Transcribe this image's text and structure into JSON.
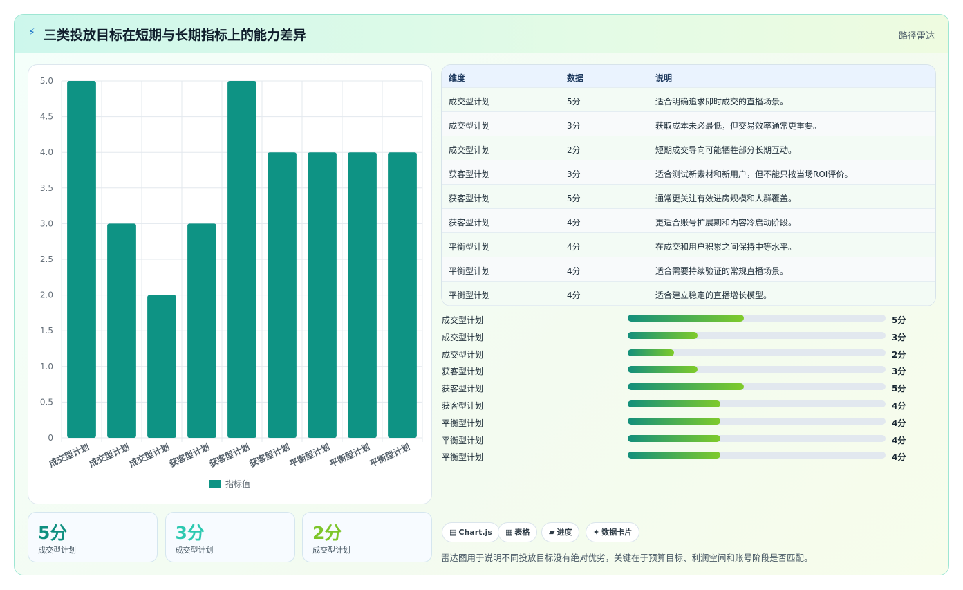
{
  "header": {
    "icon": "lightning-icon",
    "title": "三类投放目标在短期与长期指标上的能力差异",
    "tag": "路径雷达"
  },
  "chart_data": {
    "type": "bar",
    "categories": [
      "成交型计划",
      "成交型计划",
      "成交型计划",
      "获客型计划",
      "获客型计划",
      "获客型计划",
      "平衡型计划",
      "平衡型计划",
      "平衡型计划"
    ],
    "series": [
      {
        "name": "指标值",
        "values": [
          5,
          3,
          2,
          3,
          5,
          4,
          4,
          4,
          4
        ]
      }
    ],
    "ylim": [
      0,
      5
    ],
    "yticks": [
      "0",
      "0.5",
      "1.0",
      "1.5",
      "2.0",
      "2.5",
      "3.0",
      "3.5",
      "4.0",
      "4.5",
      "5.0"
    ],
    "grid": true,
    "legend": "bottom",
    "bar_color": "#0e9384"
  },
  "tiles": [
    {
      "value": "5分",
      "label": "成交型计划",
      "color": "#0e8f7f"
    },
    {
      "value": "3分",
      "label": "成交型计划",
      "color": "#2cc9b0"
    },
    {
      "value": "2分",
      "label": "成交型计划",
      "color": "#7dc52a"
    }
  ],
  "table": {
    "headers": [
      "维度",
      "数据",
      "说明"
    ],
    "rows": [
      [
        "成交型计划",
        "5分",
        "适合明确追求即时成交的直播场景。"
      ],
      [
        "成交型计划",
        "3分",
        "获取成本未必最低，但交易效率通常更重要。"
      ],
      [
        "成交型计划",
        "2分",
        "短期成交导向可能牺牲部分长期互动。"
      ],
      [
        "获客型计划",
        "3分",
        "适合测试新素材和新用户，但不能只按当场ROI评价。"
      ],
      [
        "获客型计划",
        "5分",
        "通常更关注有效进房规模和人群覆盖。"
      ],
      [
        "获客型计划",
        "4分",
        "更适合账号扩展期和内容冷启动阶段。"
      ],
      [
        "平衡型计划",
        "4分",
        "在成交和用户积累之间保持中等水平。"
      ],
      [
        "平衡型计划",
        "4分",
        "适合需要持续验证的常规直播场景。"
      ],
      [
        "平衡型计划",
        "4分",
        "适合建立稳定的直播增长模型。"
      ]
    ]
  },
  "progress": [
    {
      "label": "成交型计划",
      "value": "5分",
      "fraction": 0.45
    },
    {
      "label": "成交型计划",
      "value": "3分",
      "fraction": 0.27
    },
    {
      "label": "成交型计划",
      "value": "2分",
      "fraction": 0.18
    },
    {
      "label": "获客型计划",
      "value": "3分",
      "fraction": 0.27
    },
    {
      "label": "获客型计划",
      "value": "5分",
      "fraction": 0.45
    },
    {
      "label": "获客型计划",
      "value": "4分",
      "fraction": 0.36
    },
    {
      "label": "平衡型计划",
      "value": "4分",
      "fraction": 0.36
    },
    {
      "label": "平衡型计划",
      "value": "4分",
      "fraction": 0.36
    },
    {
      "label": "平衡型计划",
      "value": "4分",
      "fraction": 0.36
    }
  ],
  "chips": [
    {
      "icon": "chart-icon",
      "glyph": "▤",
      "label": "Chart.js"
    },
    {
      "icon": "table-icon",
      "glyph": "▦",
      "label": "表格"
    },
    {
      "icon": "progress-icon",
      "glyph": "▰",
      "label": "进度"
    },
    {
      "icon": "sparkle-icon",
      "glyph": "✦",
      "label": "数据卡片"
    }
  ],
  "footnote": "雷达图用于说明不同投放目标没有绝对优劣，关键在于预算目标、利润空间和账号阶段是否匹配。"
}
